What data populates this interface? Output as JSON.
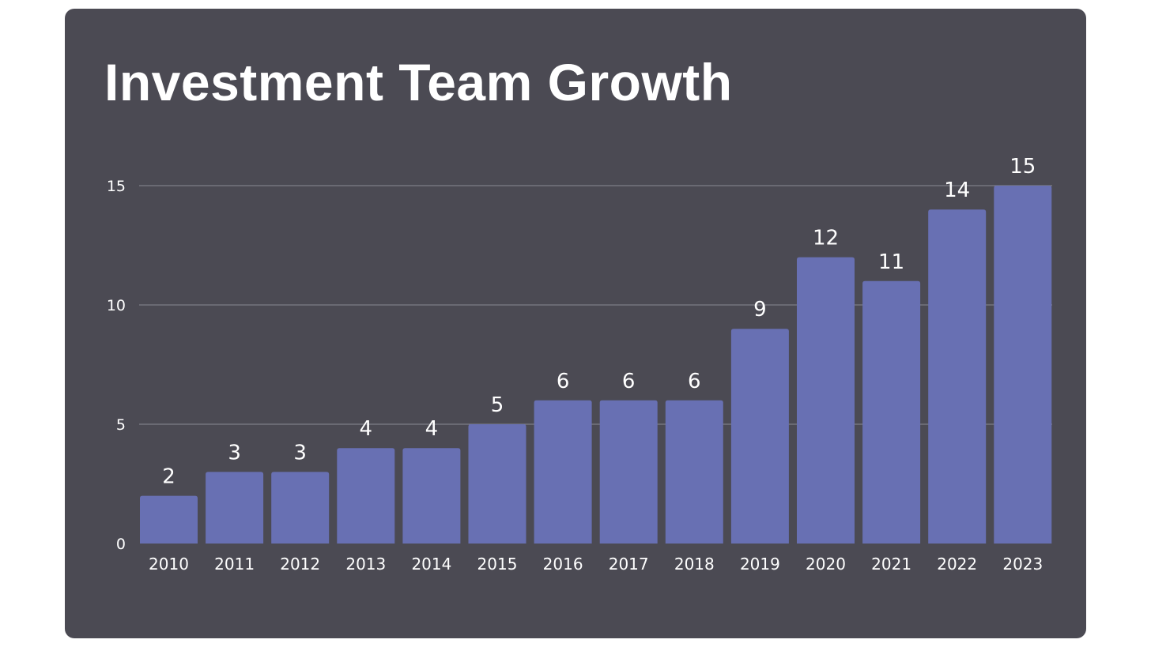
{
  "chart_data": {
    "type": "bar",
    "title": "Investment Team Growth",
    "categories": [
      "2010",
      "2011",
      "2012",
      "2013",
      "2014",
      "2015",
      "2016",
      "2017",
      "2018",
      "2019",
      "2020",
      "2021",
      "2022",
      "2023"
    ],
    "values": [
      2,
      3,
      3,
      4,
      4,
      5,
      6,
      6,
      6,
      9,
      12,
      11,
      14,
      15
    ],
    "yticks": [
      0,
      5,
      10,
      15
    ],
    "ylim": [
      0,
      15
    ],
    "xlabel": "",
    "ylabel": "",
    "grid": true,
    "data_labels": true,
    "legend": false
  },
  "colors": {
    "background": "#4b4a53",
    "bar": "#6870b3",
    "gridline": "#8a8a93",
    "text": "#ffffff"
  }
}
